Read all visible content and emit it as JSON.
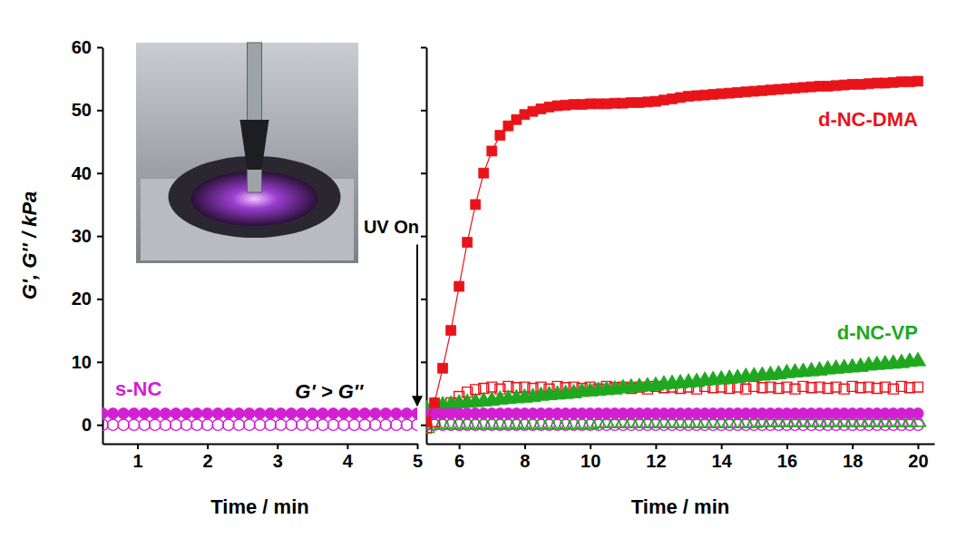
{
  "chart_data": [
    {
      "type": "scatter",
      "x_label": "Time / min",
      "y_label": "G', G'' / kPa",
      "xlim": [
        0.5,
        5
      ],
      "xticks": [
        1,
        2,
        3,
        4,
        5
      ],
      "ylim": [
        -3,
        60
      ],
      "yticks": [
        0,
        10,
        20,
        30,
        40,
        50,
        60
      ],
      "x": [
        0.5,
        0.65,
        0.8,
        0.95,
        1.1,
        1.25,
        1.4,
        1.55,
        1.7,
        1.85,
        2,
        2.15,
        2.3,
        2.45,
        2.6,
        2.75,
        2.9,
        3.05,
        3.2,
        3.35,
        3.5,
        3.65,
        3.8,
        3.95,
        4.1,
        4.25,
        4.4,
        4.55,
        4.7,
        4.85,
        5
      ],
      "series": [
        {
          "color": "#d41ed4",
          "marker": "circle-open",
          "values": [
            0,
            0,
            0,
            0,
            0,
            0,
            0,
            0,
            0,
            0,
            0,
            0,
            0,
            0,
            0,
            0,
            0,
            0,
            0,
            0,
            0,
            0,
            0,
            0,
            0,
            0,
            0,
            0,
            0,
            0,
            0
          ]
        },
        {
          "name": "s-NC",
          "color": "#d41ed4",
          "marker": "circle",
          "values": [
            1.8,
            1.8,
            1.8,
            1.8,
            1.8,
            1.8,
            1.8,
            1.8,
            1.8,
            1.8,
            1.8,
            1.8,
            1.8,
            1.8,
            1.8,
            1.8,
            1.8,
            1.8,
            1.8,
            1.8,
            1.8,
            1.8,
            1.8,
            1.8,
            1.8,
            1.8,
            1.8,
            1.8,
            1.8,
            1.8,
            1.8
          ]
        }
      ],
      "annotations": [
        {
          "text": "UV On",
          "x": 5
        },
        {
          "text": "G' > G''"
        }
      ]
    },
    {
      "type": "scatter",
      "x_label": "Time / min",
      "xlim": [
        5,
        20.5
      ],
      "xticks": [
        6,
        8,
        10,
        12,
        14,
        16,
        18,
        20
      ],
      "ylim": [
        -3,
        60
      ],
      "yticks": [
        0,
        10,
        20,
        30,
        40,
        50,
        60
      ],
      "tick_labels": "x",
      "x": [
        5,
        5.25,
        5.5,
        5.75,
        6,
        6.25,
        6.5,
        6.75,
        7,
        7.25,
        7.5,
        7.75,
        8,
        8.25,
        8.5,
        8.75,
        9,
        9.25,
        9.5,
        9.75,
        10,
        10.25,
        10.5,
        10.75,
        11,
        11.25,
        11.5,
        11.75,
        12,
        12.25,
        12.5,
        12.75,
        13,
        13.25,
        13.5,
        13.75,
        14,
        14.25,
        14.5,
        14.75,
        15,
        15.25,
        15.5,
        15.75,
        16,
        16.25,
        16.5,
        16.75,
        17,
        17.25,
        17.5,
        17.75,
        18,
        18.25,
        18.5,
        18.75,
        19,
        19.25,
        19.5,
        19.75,
        20
      ],
      "series": [
        {
          "color": "#d41ed4",
          "marker": "circle-open",
          "values": [
            0,
            0,
            0,
            0,
            0,
            0,
            0,
            0,
            0,
            0,
            0,
            0,
            0,
            0,
            0,
            0,
            0,
            0,
            0,
            0,
            0,
            0,
            0,
            0,
            0,
            0,
            0,
            0,
            0,
            0,
            0,
            0,
            0,
            0,
            0,
            0,
            0,
            0,
            0,
            0,
            0,
            0,
            0,
            0,
            0,
            0,
            0,
            0,
            0,
            0,
            0,
            0,
            0,
            0,
            0,
            0,
            0,
            0,
            0,
            0,
            0
          ]
        },
        {
          "color": "#1fa81f",
          "marker": "triangle-open",
          "values": [
            -0.5,
            0.1,
            0.1,
            0.1,
            0.1,
            0.1,
            0.1,
            0.1,
            0.1,
            0.1,
            0.1,
            0.1,
            0.1,
            0.1,
            0.1,
            0.1,
            0.1,
            0.1,
            0.1,
            0.1,
            0.1,
            0.3,
            0.3,
            0.3,
            0.3,
            0.3,
            0.3,
            0.3,
            0.3,
            0.3,
            0.3,
            0.3,
            0.3,
            0.3,
            0.3,
            0.3,
            0.3,
            0.3,
            0.3,
            0.3,
            0.3,
            0.5,
            0.5,
            0.5,
            0.5,
            0.5,
            0.5,
            0.5,
            0.5,
            0.5,
            0.5,
            0.5,
            0.5,
            0.5,
            0.5,
            0.5,
            0.5,
            0.5,
            0.5,
            0.5,
            0.5
          ]
        },
        {
          "color": "#e8141a",
          "marker": "square-open",
          "values": [
            -0.5,
            0.5,
            2,
            3.5,
            4.5,
            5.2,
            5.6,
            5.8,
            6,
            5.7,
            6.1,
            5.9,
            6,
            5.8,
            6,
            5.7,
            6.1,
            5.9,
            6,
            5.8,
            6,
            5.7,
            6.1,
            5.9,
            6,
            5.8,
            6,
            5.7,
            6.1,
            5.9,
            6,
            5.8,
            6,
            5.7,
            6.1,
            5.9,
            6,
            5.8,
            6,
            5.7,
            6.1,
            5.9,
            6,
            5.8,
            6,
            5.7,
            6.1,
            5.9,
            6,
            5.8,
            6,
            5.7,
            6.1,
            5.9,
            6,
            5.8,
            6,
            5.7,
            6.1,
            5.9,
            6
          ]
        },
        {
          "name": "d-NC-VP",
          "color": "#1fa81f",
          "marker": "triangle",
          "values": [
            2.5,
            3,
            3.1,
            3.2,
            3.4,
            3.5,
            3.6,
            3.7,
            3.8,
            4,
            4.1,
            4.2,
            4.3,
            4.4,
            4.6,
            4.7,
            4.8,
            4.9,
            5,
            5.2,
            5.3,
            5.4,
            5.5,
            5.6,
            5.8,
            5.9,
            6,
            6.1,
            6.2,
            6.4,
            6.5,
            6.6,
            6.7,
            6.8,
            7,
            7.1,
            7.2,
            7.3,
            7.4,
            7.6,
            7.7,
            7.8,
            7.9,
            8,
            8.2,
            8.3,
            8.4,
            8.5,
            8.6,
            8.8,
            8.9,
            9,
            9.1,
            9.2,
            9.4,
            9.5,
            9.6,
            9.7,
            9.8,
            10,
            10.1
          ]
        },
        {
          "color": "#d41ed4",
          "marker": "circle",
          "values": [
            1.8,
            1.8,
            1.8,
            1.8,
            1.8,
            1.8,
            1.8,
            1.8,
            1.8,
            1.8,
            1.8,
            1.8,
            1.8,
            1.8,
            1.8,
            1.8,
            1.8,
            1.8,
            1.8,
            1.8,
            1.8,
            1.8,
            1.8,
            1.8,
            1.8,
            1.8,
            1.8,
            1.8,
            1.8,
            1.8,
            1.8,
            1.8,
            1.8,
            1.8,
            1.8,
            1.8,
            1.8,
            1.8,
            1.8,
            1.8,
            1.8,
            1.8,
            1.8,
            1.8,
            1.8,
            1.8,
            1.8,
            1.8,
            1.8,
            1.8,
            1.8,
            1.8,
            1.8,
            1.8,
            1.8,
            1.8,
            1.8,
            1.8,
            1.8,
            1.8,
            1.8
          ]
        },
        {
          "name": "d-NC-DMA",
          "color": "#e8141a",
          "marker": "square",
          "line_style": "solid",
          "values": [
            0.5,
            3.5,
            9,
            15,
            22,
            29,
            35,
            40,
            43.5,
            46,
            47.5,
            48.5,
            49.3,
            49.8,
            50.2,
            50.5,
            50.7,
            50.8,
            50.9,
            50.9,
            51,
            51,
            51,
            51.1,
            51.1,
            51.2,
            51.2,
            51.3,
            51.4,
            51.6,
            51.8,
            52,
            52.2,
            52.3,
            52.4,
            52.5,
            52.6,
            52.7,
            52.8,
            52.9,
            53,
            53.1,
            53.2,
            53.3,
            53.4,
            53.5,
            53.6,
            53.7,
            53.8,
            53.8,
            53.9,
            54,
            54.1,
            54.1,
            54.2,
            54.3,
            54.3,
            54.4,
            54.5,
            54.5,
            54.6
          ]
        }
      ]
    }
  ]
}
